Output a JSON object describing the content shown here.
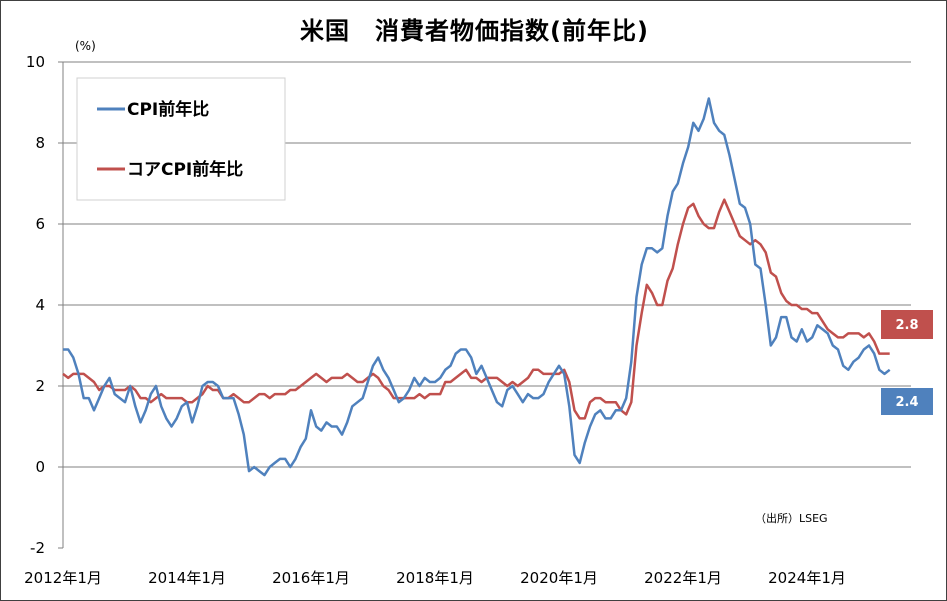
{
  "chart_data": {
    "type": "line",
    "title": "米国　消費者物価指数(前年比)",
    "ylabel": "(%)",
    "xlabel": "",
    "ylim": [
      -2,
      10
    ],
    "yticks": [
      -2,
      0,
      2,
      4,
      6,
      8,
      10
    ],
    "xticks": [
      {
        "label": "2012年1月",
        "t": 2012.0
      },
      {
        "label": "2014年1月",
        "t": 2014.0
      },
      {
        "label": "2016年1月",
        "t": 2016.0
      },
      {
        "label": "2018年1月",
        "t": 2018.0
      },
      {
        "label": "2020年1月",
        "t": 2020.0
      },
      {
        "label": "2022年1月",
        "t": 2022.0
      },
      {
        "label": "2024年1月",
        "t": 2024.0
      }
    ],
    "x_start": "2012-01",
    "source": "（出所）LSEG",
    "legend": "top-left",
    "grid": "horizontal",
    "series": [
      {
        "name": "CPI前年比",
        "color": "#4f81bd",
        "last_label": "2.4",
        "values": [
          2.9,
          2.9,
          2.7,
          2.3,
          1.7,
          1.7,
          1.4,
          1.7,
          2.0,
          2.2,
          1.8,
          1.7,
          1.6,
          2.0,
          1.5,
          1.1,
          1.4,
          1.8,
          2.0,
          1.5,
          1.2,
          1.0,
          1.2,
          1.5,
          1.6,
          1.1,
          1.5,
          2.0,
          2.1,
          2.1,
          2.0,
          1.7,
          1.7,
          1.7,
          1.3,
          0.8,
          -0.1,
          0.0,
          -0.1,
          -0.2,
          0.0,
          0.1,
          0.2,
          0.2,
          0.0,
          0.2,
          0.5,
          0.7,
          1.4,
          1.0,
          0.9,
          1.1,
          1.0,
          1.0,
          0.8,
          1.1,
          1.5,
          1.6,
          1.7,
          2.1,
          2.5,
          2.7,
          2.4,
          2.2,
          1.9,
          1.6,
          1.7,
          1.9,
          2.2,
          2.0,
          2.2,
          2.1,
          2.1,
          2.2,
          2.4,
          2.5,
          2.8,
          2.9,
          2.9,
          2.7,
          2.3,
          2.5,
          2.2,
          1.9,
          1.6,
          1.5,
          1.9,
          2.0,
          1.8,
          1.6,
          1.8,
          1.7,
          1.7,
          1.8,
          2.1,
          2.3,
          2.5,
          2.3,
          1.5,
          0.3,
          0.1,
          0.6,
          1.0,
          1.3,
          1.4,
          1.2,
          1.2,
          1.4,
          1.4,
          1.7,
          2.6,
          4.2,
          5.0,
          5.4,
          5.4,
          5.3,
          5.4,
          6.2,
          6.8,
          7.0,
          7.5,
          7.9,
          8.5,
          8.3,
          8.6,
          9.1,
          8.5,
          8.3,
          8.2,
          7.7,
          7.1,
          6.5,
          6.4,
          6.0,
          5.0,
          4.9,
          4.0,
          3.0,
          3.2,
          3.7,
          3.7,
          3.2,
          3.1,
          3.4,
          3.1,
          3.2,
          3.5,
          3.4,
          3.3,
          3.0,
          2.9,
          2.5,
          2.4,
          2.6,
          2.7,
          2.9,
          3.0,
          2.8,
          2.4,
          2.3,
          2.4
        ]
      },
      {
        "name": "コアCPI前年比",
        "color": "#c0504d",
        "last_label": "2.8",
        "values": [
          2.3,
          2.2,
          2.3,
          2.3,
          2.3,
          2.2,
          2.1,
          1.9,
          2.0,
          2.0,
          1.9,
          1.9,
          1.9,
          2.0,
          1.9,
          1.7,
          1.7,
          1.6,
          1.7,
          1.8,
          1.7,
          1.7,
          1.7,
          1.7,
          1.6,
          1.6,
          1.7,
          1.8,
          2.0,
          1.9,
          1.9,
          1.7,
          1.7,
          1.8,
          1.7,
          1.6,
          1.6,
          1.7,
          1.8,
          1.8,
          1.7,
          1.8,
          1.8,
          1.8,
          1.9,
          1.9,
          2.0,
          2.1,
          2.2,
          2.3,
          2.2,
          2.1,
          2.2,
          2.2,
          2.2,
          2.3,
          2.2,
          2.1,
          2.1,
          2.2,
          2.3,
          2.2,
          2.0,
          1.9,
          1.7,
          1.7,
          1.7,
          1.7,
          1.7,
          1.8,
          1.7,
          1.8,
          1.8,
          1.8,
          2.1,
          2.1,
          2.2,
          2.3,
          2.4,
          2.2,
          2.2,
          2.1,
          2.2,
          2.2,
          2.2,
          2.1,
          2.0,
          2.1,
          2.0,
          2.1,
          2.2,
          2.4,
          2.4,
          2.3,
          2.3,
          2.3,
          2.3,
          2.4,
          2.1,
          1.4,
          1.2,
          1.2,
          1.6,
          1.7,
          1.7,
          1.6,
          1.6,
          1.6,
          1.4,
          1.3,
          1.6,
          3.0,
          3.8,
          4.5,
          4.3,
          4.0,
          4.0,
          4.6,
          4.9,
          5.5,
          6.0,
          6.4,
          6.5,
          6.2,
          6.0,
          5.9,
          5.9,
          6.3,
          6.6,
          6.3,
          6.0,
          5.7,
          5.6,
          5.5,
          5.6,
          5.5,
          5.3,
          4.8,
          4.7,
          4.3,
          4.1,
          4.0,
          4.0,
          3.9,
          3.9,
          3.8,
          3.8,
          3.6,
          3.4,
          3.3,
          3.2,
          3.2,
          3.3,
          3.3,
          3.3,
          3.2,
          3.3,
          3.1,
          2.8,
          2.8,
          2.8
        ]
      }
    ]
  }
}
